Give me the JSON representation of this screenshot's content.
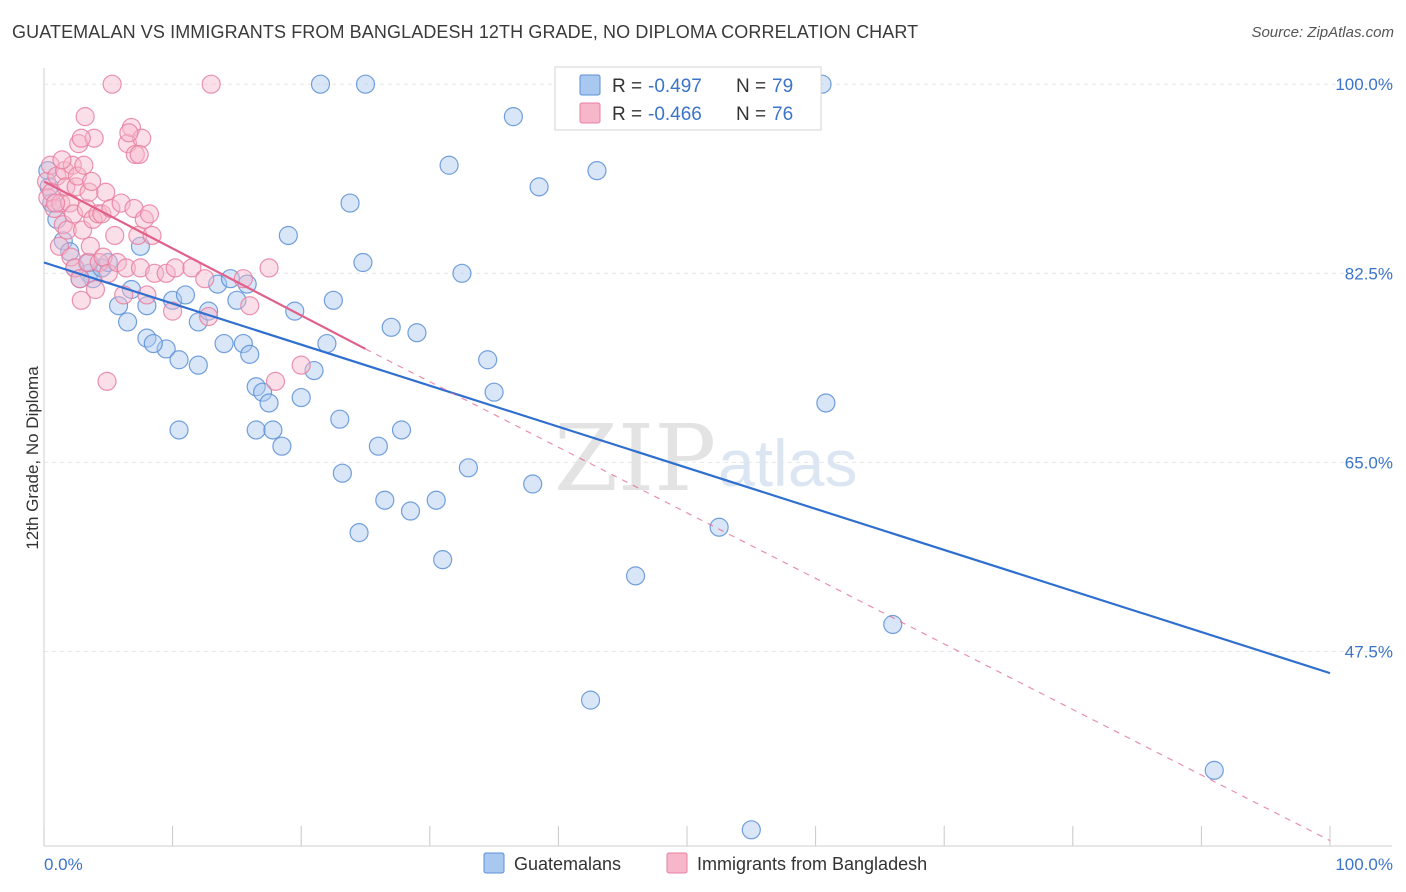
{
  "title": "GUATEMALAN VS IMMIGRANTS FROM BANGLADESH 12TH GRADE, NO DIPLOMA CORRELATION CHART",
  "source": "Source: ZipAtlas.com",
  "watermark": {
    "zip": "ZIP",
    "atlas": "atlas"
  },
  "colors": {
    "blue_fill": "#a9c8ef",
    "blue_stroke": "#5b8fd6",
    "blue_line": "#2f6fcf",
    "pink_fill": "#f7b7cb",
    "pink_stroke": "#e87fa0",
    "pink_line": "#e0608a",
    "tick_text": "#3b74c8",
    "grid": "#e6e6e6"
  },
  "legend": {
    "rows": [
      {
        "r_label": "R =",
        "r_value": "-0.497",
        "n_label": "N =",
        "n_value": "79"
      },
      {
        "r_label": "R =",
        "r_value": "-0.466",
        "n_label": "N =",
        "n_value": "76"
      }
    ]
  },
  "chart_data": {
    "type": "scatter",
    "title": "GUATEMALAN VS IMMIGRANTS FROM BANGLADESH 12TH GRADE, NO DIPLOMA CORRELATION CHART",
    "xlabel": "",
    "ylabel": "12th Grade, No Diploma",
    "xlim": [
      0,
      100
    ],
    "ylim": [
      29.5,
      101.5
    ],
    "x_tick_labels": [
      "0.0%",
      "100.0%"
    ],
    "y_ticks": [
      47.5,
      65.0,
      82.5,
      100.0
    ],
    "y_tick_labels": [
      "47.5%",
      "65.0%",
      "82.5%",
      "100.0%"
    ],
    "grid": true,
    "legend_position": "top-center",
    "series": [
      {
        "name": "Guatemalans",
        "color": "#a9c8ef",
        "points": [
          [
            0.3,
            92.0
          ],
          [
            0.4,
            90.5
          ],
          [
            0.6,
            89.0
          ],
          [
            1.0,
            87.5
          ],
          [
            1.5,
            85.5
          ],
          [
            2.0,
            84.5
          ],
          [
            2.4,
            83.0
          ],
          [
            3.5,
            82.5
          ],
          [
            3.8,
            82.0
          ],
          [
            4.5,
            83.0
          ],
          [
            2.8,
            82.0
          ],
          [
            3.5,
            83.5
          ],
          [
            5.0,
            83.5
          ],
          [
            7.5,
            85.0
          ],
          [
            6.8,
            81.0
          ],
          [
            5.8,
            79.5
          ],
          [
            6.5,
            78.0
          ],
          [
            8.0,
            76.5
          ],
          [
            9.5,
            75.5
          ],
          [
            8.5,
            76.0
          ],
          [
            10.0,
            80.0
          ],
          [
            11.0,
            80.5
          ],
          [
            10.5,
            74.5
          ],
          [
            12.0,
            78.0
          ],
          [
            12.8,
            79.0
          ],
          [
            13.5,
            81.5
          ],
          [
            14.0,
            76.0
          ],
          [
            15.0,
            80.0
          ],
          [
            15.5,
            76.0
          ],
          [
            16.0,
            75.0
          ],
          [
            15.8,
            81.5
          ],
          [
            16.5,
            72.0
          ],
          [
            17.0,
            71.5
          ],
          [
            17.5,
            70.5
          ],
          [
            16.5,
            68.0
          ],
          [
            17.8,
            68.0
          ],
          [
            18.5,
            66.5
          ],
          [
            20.0,
            71.0
          ],
          [
            19.5,
            79.0
          ],
          [
            21.0,
            73.5
          ],
          [
            22.0,
            76.0
          ],
          [
            22.5,
            80.0
          ],
          [
            23.0,
            69.0
          ],
          [
            23.2,
            64.0
          ],
          [
            23.8,
            89.0
          ],
          [
            24.5,
            58.5
          ],
          [
            24.8,
            83.5
          ],
          [
            25.0,
            100.0
          ],
          [
            26.0,
            66.5
          ],
          [
            26.5,
            61.5
          ],
          [
            27.0,
            77.5
          ],
          [
            27.8,
            68.0
          ],
          [
            28.5,
            60.5
          ],
          [
            29.0,
            77.0
          ],
          [
            30.5,
            61.5
          ],
          [
            31.0,
            56.0
          ],
          [
            31.5,
            92.5
          ],
          [
            32.5,
            82.5
          ],
          [
            33.0,
            64.5
          ],
          [
            34.5,
            74.5
          ],
          [
            35.0,
            71.5
          ],
          [
            36.5,
            97.0
          ],
          [
            38.0,
            63.0
          ],
          [
            38.5,
            90.5
          ],
          [
            42.5,
            43.0
          ],
          [
            43.0,
            92.0
          ],
          [
            46.0,
            54.5
          ],
          [
            52.5,
            59.0
          ],
          [
            55.0,
            31.0
          ],
          [
            60.5,
            100.0
          ],
          [
            60.8,
            70.5
          ],
          [
            66.0,
            50.0
          ],
          [
            91.0,
            36.5
          ],
          [
            10.5,
            68.0
          ],
          [
            12.0,
            74.0
          ],
          [
            21.5,
            100.0
          ],
          [
            8.0,
            79.5
          ],
          [
            14.5,
            82.0
          ],
          [
            19.0,
            86.0
          ]
        ]
      },
      {
        "name": "Immigrants from Bangladesh",
        "color": "#f7b7cb",
        "points": [
          [
            0.2,
            91.0
          ],
          [
            0.3,
            89.5
          ],
          [
            0.5,
            92.5
          ],
          [
            0.6,
            90.0
          ],
          [
            0.8,
            88.5
          ],
          [
            1.0,
            91.5
          ],
          [
            1.2,
            85.0
          ],
          [
            1.3,
            89.0
          ],
          [
            1.5,
            87.0
          ],
          [
            1.6,
            92.0
          ],
          [
            1.7,
            90.5
          ],
          [
            1.8,
            86.5
          ],
          [
            2.0,
            89.0
          ],
          [
            2.1,
            84.0
          ],
          [
            2.2,
            92.5
          ],
          [
            2.3,
            88.0
          ],
          [
            2.4,
            83.0
          ],
          [
            2.5,
            90.5
          ],
          [
            2.6,
            91.5
          ],
          [
            2.7,
            94.5
          ],
          [
            2.8,
            82.0
          ],
          [
            2.9,
            80.0
          ],
          [
            3.0,
            86.5
          ],
          [
            3.1,
            92.5
          ],
          [
            3.2,
            97.0
          ],
          [
            3.3,
            88.5
          ],
          [
            3.4,
            83.5
          ],
          [
            3.5,
            90.0
          ],
          [
            3.6,
            85.0
          ],
          [
            3.8,
            87.5
          ],
          [
            3.9,
            95.0
          ],
          [
            4.0,
            81.0
          ],
          [
            4.2,
            88.0
          ],
          [
            4.3,
            83.5
          ],
          [
            4.5,
            88.0
          ],
          [
            4.6,
            84.0
          ],
          [
            4.8,
            90.0
          ],
          [
            4.9,
            72.5
          ],
          [
            5.0,
            82.5
          ],
          [
            5.2,
            88.5
          ],
          [
            5.5,
            86.0
          ],
          [
            5.7,
            83.5
          ],
          [
            6.0,
            89.0
          ],
          [
            6.2,
            80.5
          ],
          [
            6.4,
            83.0
          ],
          [
            6.5,
            94.5
          ],
          [
            6.8,
            96.0
          ],
          [
            7.0,
            88.5
          ],
          [
            7.1,
            93.5
          ],
          [
            7.3,
            86.0
          ],
          [
            7.5,
            83.0
          ],
          [
            7.6,
            95.0
          ],
          [
            7.8,
            87.5
          ],
          [
            8.0,
            80.5
          ],
          [
            8.2,
            88.0
          ],
          [
            8.4,
            86.0
          ],
          [
            8.6,
            82.5
          ],
          [
            9.5,
            82.5
          ],
          [
            10.0,
            79.0
          ],
          [
            10.2,
            83.0
          ],
          [
            11.5,
            83.0
          ],
          [
            12.5,
            82.0
          ],
          [
            12.8,
            78.5
          ],
          [
            13.0,
            100.0
          ],
          [
            15.5,
            82.0
          ],
          [
            16.0,
            79.5
          ],
          [
            17.5,
            83.0
          ],
          [
            18.0,
            72.5
          ],
          [
            20.0,
            74.0
          ],
          [
            3.7,
            91.0
          ],
          [
            6.6,
            95.5
          ],
          [
            7.4,
            93.5
          ],
          [
            1.4,
            93.0
          ],
          [
            2.9,
            95.0
          ],
          [
            5.3,
            100.0
          ],
          [
            0.9,
            89.0
          ]
        ]
      }
    ],
    "trend_lines": [
      {
        "series": "Guatemalans",
        "x": [
          0,
          100
        ],
        "y": [
          83.5,
          45.5
        ]
      },
      {
        "series": "Immigrants from Bangladesh",
        "x": [
          0,
          25
        ],
        "y": [
          91.0,
          75.5
        ],
        "dashed_extension_to": [
          100,
          30.0
        ]
      }
    ]
  }
}
